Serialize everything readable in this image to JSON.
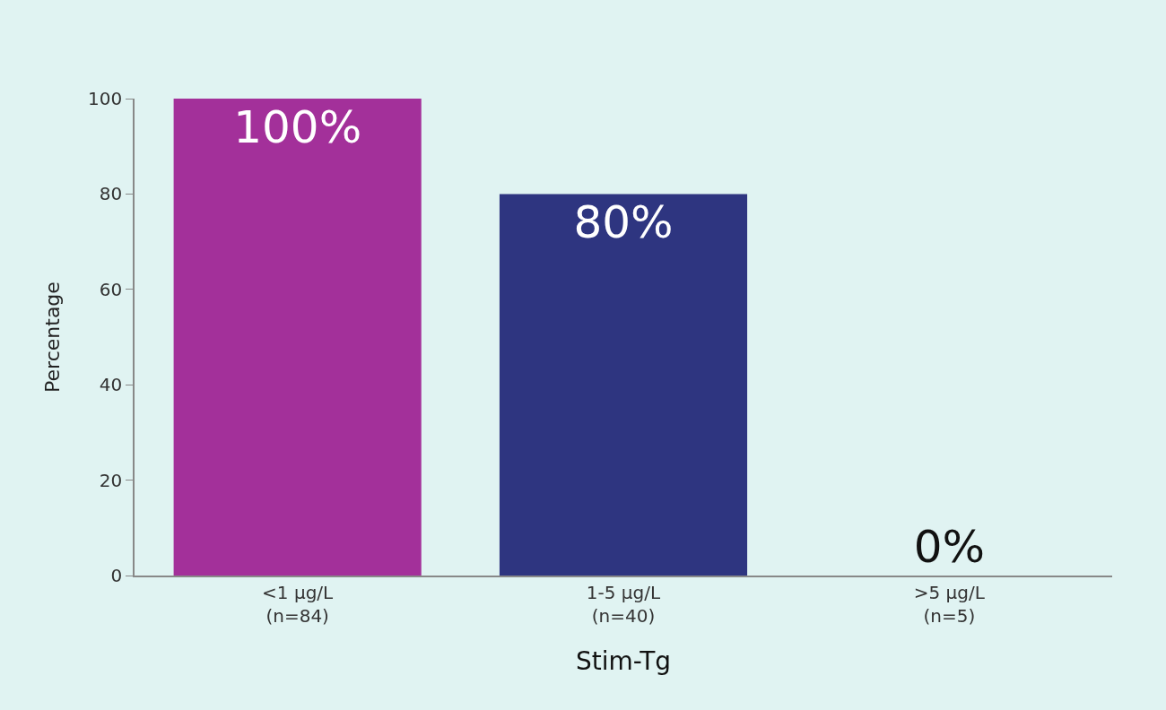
{
  "chart_data": {
    "type": "bar",
    "xlabel": "Stim-Tg",
    "ylabel": "Percentage",
    "categories": [
      "<1 µg/L\n(n=84)",
      "1-5 µg/L\n(n=40)",
      ">5 µg/L\n(n=5)"
    ],
    "values": [
      100,
      80,
      0
    ],
    "colors": [
      "#a3309a",
      "#2e3580",
      "#2e3580"
    ],
    "value_labels": [
      "100%",
      "80%",
      "0%"
    ],
    "ylim": [
      0,
      100
    ],
    "yticks": [
      0,
      20,
      40,
      60,
      80,
      100
    ],
    "grid": false,
    "legend": false
  }
}
